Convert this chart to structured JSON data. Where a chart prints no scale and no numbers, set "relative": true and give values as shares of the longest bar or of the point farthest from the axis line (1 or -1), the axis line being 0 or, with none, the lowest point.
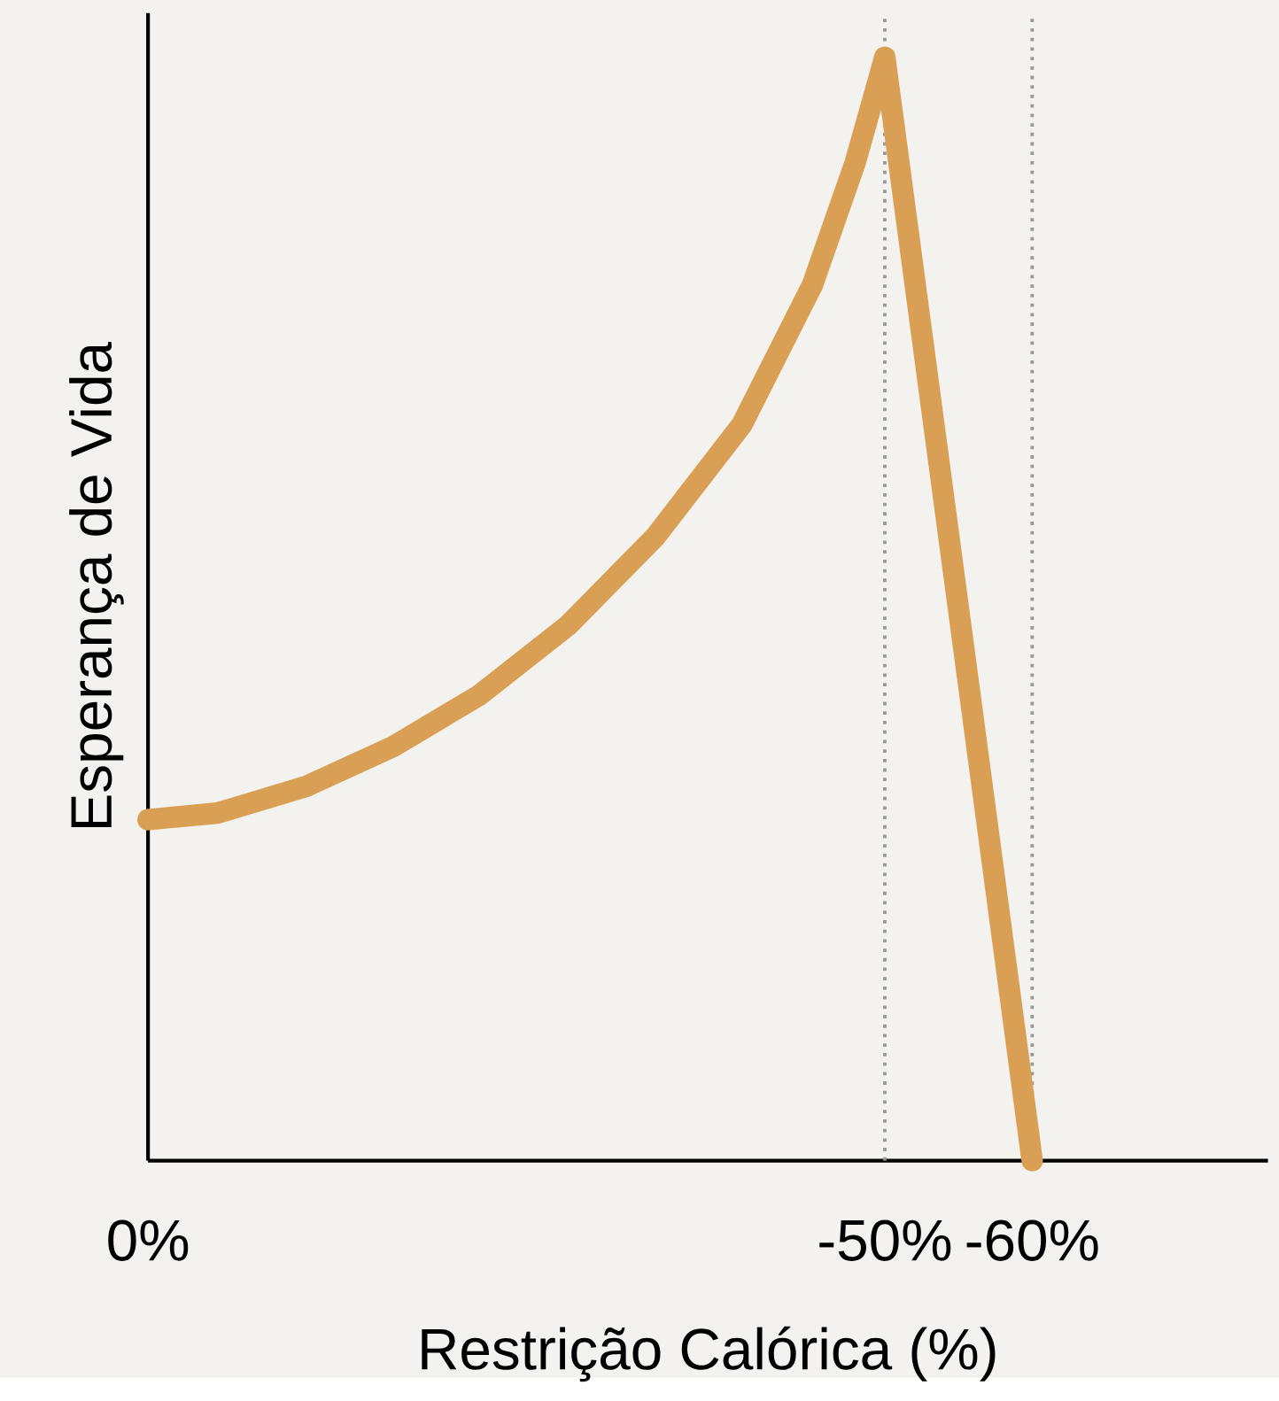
{
  "chart_data": {
    "type": "line",
    "relative": true,
    "xlabel": "Restrição Calórica (%)",
    "ylabel": "Esperança de Vida",
    "xlim": [
      0,
      -76
    ],
    "xticks": [
      {
        "value": 0,
        "label": "0%"
      },
      {
        "value": -50,
        "label": "-50%"
      },
      {
        "value": -60,
        "label": "-60%"
      }
    ],
    "marker": "none",
    "line_style": "solid",
    "series": [
      {
        "color": "#d9a055",
        "x": [
          0,
          -4.7,
          -10.7,
          -16.6,
          -22.5,
          -28.5,
          -34.4,
          -40.3,
          -45.1,
          -48.0,
          -50,
          -60
        ],
        "values": [
          0.309,
          0.315,
          0.339,
          0.375,
          0.422,
          0.485,
          0.565,
          0.667,
          0.794,
          0.905,
          1,
          0
        ]
      }
    ],
    "ref_lines": [
      {
        "axis": "x",
        "value": -50,
        "color": "#999999",
        "line_style": "dotted"
      },
      {
        "axis": "x",
        "value": -60,
        "color": "#999999",
        "line_style": "dotted"
      }
    ]
  }
}
